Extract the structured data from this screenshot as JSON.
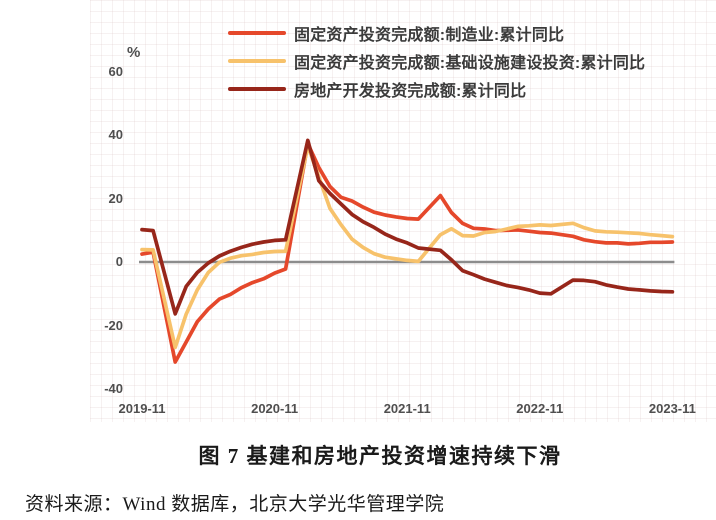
{
  "figure": {
    "caption": "图 7 基建和房地产投资增速持续下滑",
    "source": "资料来源：Wind 数据库，北京大学光华管理学院"
  },
  "chart_data": {
    "type": "line",
    "title": "图 7 基建和房地产投资增速持续下滑",
    "ylabel_unit": "%",
    "ylim": [
      -40,
      60
    ],
    "y_ticks": [
      60,
      40,
      20,
      0,
      -20,
      -40
    ],
    "x_tick_labels": [
      "2019-11",
      "2020-11",
      "2021-11",
      "2022-11",
      "2023-11"
    ],
    "grid": "faint",
    "legend_position": "top",
    "zero_line_color": "#8c8c8c",
    "x": [
      "2019-11",
      "2019-12",
      "2020-02",
      "2020-03",
      "2020-04",
      "2020-05",
      "2020-06",
      "2020-07",
      "2020-08",
      "2020-09",
      "2020-10",
      "2020-11",
      "2020-12",
      "2021-02",
      "2021-03",
      "2021-04",
      "2021-05",
      "2021-06",
      "2021-07",
      "2021-08",
      "2021-09",
      "2021-10",
      "2021-11",
      "2021-12",
      "2022-02",
      "2022-03",
      "2022-04",
      "2022-05",
      "2022-06",
      "2022-07",
      "2022-08",
      "2022-09",
      "2022-10",
      "2022-11",
      "2022-12",
      "2023-02",
      "2023-03",
      "2023-04",
      "2023-05",
      "2023-06",
      "2023-07",
      "2023-08",
      "2023-09",
      "2023-10",
      "2023-11"
    ],
    "series": [
      {
        "id": "manufacturing",
        "name": "固定资产投资完成额:制造业:累计同比",
        "color": "#e5482b",
        "values": [
          2.5,
          3.1,
          -31.5,
          -25.2,
          -18.8,
          -14.8,
          -11.7,
          -10.2,
          -8.1,
          -6.5,
          -5.3,
          -3.5,
          -2.2,
          37.3,
          29.8,
          23.8,
          20.4,
          19.2,
          17.3,
          15.7,
          14.8,
          14.2,
          13.7,
          13.5,
          20.9,
          15.6,
          12.2,
          10.6,
          10.4,
          9.9,
          10.0,
          10.1,
          9.7,
          9.3,
          9.1,
          8.1,
          7.0,
          6.4,
          6.0,
          6.0,
          5.7,
          5.9,
          6.2,
          6.2,
          6.3
        ]
      },
      {
        "id": "infrastructure",
        "name": "固定资产投资完成额:基础设施建设投资:累计同比",
        "color": "#f7c26b",
        "values": [
          3.9,
          3.8,
          -26.9,
          -16.4,
          -8.8,
          -3.3,
          -0.1,
          1.2,
          2.0,
          2.4,
          3.0,
          3.3,
          3.4,
          36.6,
          26.8,
          16.9,
          11.8,
          7.2,
          4.6,
          2.6,
          1.5,
          1.0,
          0.5,
          0.2,
          8.6,
          10.5,
          8.3,
          8.2,
          9.3,
          9.6,
          10.4,
          11.2,
          11.4,
          11.7,
          11.5,
          12.2,
          10.8,
          9.8,
          9.5,
          9.4,
          9.2,
          9.0,
          8.6,
          8.3,
          8.0
        ]
      },
      {
        "id": "real-estate",
        "name": "房地产开发投资完成额:累计同比",
        "color": "#97261a",
        "values": [
          10.2,
          9.9,
          -16.3,
          -7.7,
          -3.3,
          -0.3,
          1.9,
          3.4,
          4.6,
          5.6,
          6.3,
          6.8,
          7.0,
          38.3,
          25.6,
          21.6,
          18.3,
          15.0,
          12.7,
          10.9,
          8.8,
          7.2,
          6.0,
          4.4,
          3.7,
          0.7,
          -2.7,
          -4.0,
          -5.4,
          -6.4,
          -7.4,
          -8.0,
          -8.8,
          -9.8,
          -10.0,
          -5.7,
          -5.8,
          -6.2,
          -7.2,
          -7.9,
          -8.5,
          -8.8,
          -9.1,
          -9.3,
          -9.4
        ]
      }
    ]
  }
}
